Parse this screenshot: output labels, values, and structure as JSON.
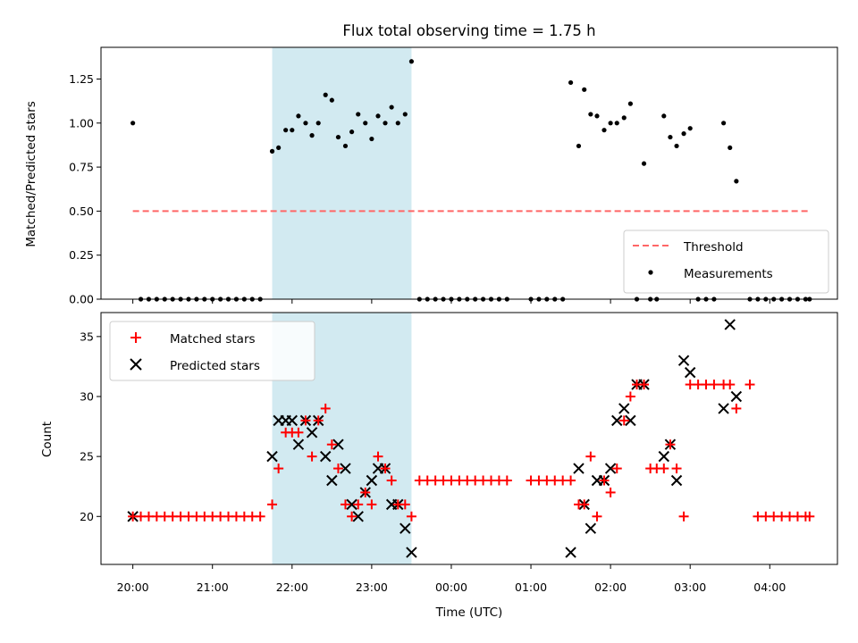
{
  "chart_data": [
    {
      "type": "scatter",
      "title": "Flux total observing time = 1.75 h",
      "xlabel": "",
      "ylabel": "Matched/Predicted stars",
      "ylim": [
        0,
        1.43
      ],
      "yticks": [
        "0.00",
        "0.25",
        "0.50",
        "0.75",
        "1.00",
        "1.25"
      ],
      "shaded_region": {
        "start": 1.75,
        "end": 3.5,
        "color": "#add8e6"
      },
      "threshold": {
        "name": "Threshold",
        "value": 0.5,
        "x_start": 0,
        "x_end": 8.5,
        "color": "#ff6666"
      },
      "legend_position": "lower-right",
      "series": [
        {
          "name": "Measurements",
          "marker": "dot",
          "color": "#000000",
          "x": [
            0.0,
            0.1,
            0.2,
            0.3,
            0.4,
            0.5,
            0.6,
            0.7,
            0.8,
            0.9,
            1.0,
            1.1,
            1.2,
            1.3,
            1.4,
            1.5,
            1.6,
            1.75,
            1.83,
            1.92,
            2.0,
            2.08,
            2.17,
            2.25,
            2.33,
            2.42,
            2.5,
            2.58,
            2.67,
            2.75,
            2.83,
            2.92,
            3.0,
            3.08,
            3.17,
            3.25,
            3.33,
            3.42,
            3.5,
            3.6,
            3.7,
            3.8,
            3.9,
            4.0,
            4.1,
            4.2,
            4.3,
            4.4,
            4.5,
            4.6,
            4.7,
            5.0,
            5.1,
            5.2,
            5.3,
            5.4,
            5.5,
            5.6,
            5.67,
            5.75,
            5.83,
            5.92,
            6.0,
            6.08,
            6.17,
            6.25,
            6.33,
            6.42,
            6.5,
            6.58,
            6.67,
            6.75,
            6.83,
            6.92,
            7.0,
            7.1,
            7.2,
            7.3,
            7.42,
            7.5,
            7.58,
            7.75,
            7.85,
            7.95,
            8.05,
            8.15,
            8.25,
            8.35,
            8.45,
            8.5
          ],
          "y": [
            1.0,
            0,
            0,
            0,
            0,
            0,
            0,
            0,
            0,
            0,
            0,
            0,
            0,
            0,
            0,
            0,
            0,
            0.84,
            0.86,
            0.96,
            0.96,
            1.04,
            1.0,
            0.93,
            1.0,
            1.16,
            1.13,
            0.92,
            0.87,
            0.95,
            1.05,
            1.0,
            0.91,
            1.04,
            1.0,
            1.09,
            1.0,
            1.05,
            1.35,
            0,
            0,
            0,
            0,
            0,
            0,
            0,
            0,
            0,
            0,
            0,
            0,
            0,
            0,
            0,
            0,
            0,
            1.23,
            0.87,
            1.19,
            1.05,
            1.04,
            0.96,
            1.0,
            1.0,
            1.03,
            1.11,
            0,
            0.77,
            0,
            0,
            1.04,
            0.92,
            0.87,
            0.94,
            0.97,
            0,
            0,
            0,
            1.0,
            0.86,
            0.67,
            0,
            0,
            0,
            0,
            0,
            0,
            0,
            0,
            0
          ]
        }
      ]
    },
    {
      "type": "scatter",
      "title": "",
      "xlabel": "Time (UTC)",
      "ylabel": "Count",
      "ylim": [
        16,
        37
      ],
      "yticks": [
        "20",
        "25",
        "30",
        "35"
      ],
      "xlim": [
        -0.4,
        8.85
      ],
      "xticks": [
        "20:00",
        "21:00",
        "22:00",
        "23:00",
        "00:00",
        "01:00",
        "02:00",
        "03:00",
        "04:00"
      ],
      "shaded_region": {
        "start": 1.75,
        "end": 3.5,
        "color": "#add8e6"
      },
      "legend_position": "upper-left",
      "series": [
        {
          "name": "Matched stars",
          "marker": "plus",
          "color": "#ff0000",
          "x": [
            0.0,
            0.1,
            0.2,
            0.3,
            0.4,
            0.5,
            0.6,
            0.7,
            0.8,
            0.9,
            1.0,
            1.1,
            1.2,
            1.3,
            1.4,
            1.5,
            1.6,
            1.75,
            1.83,
            1.92,
            2.0,
            2.08,
            2.17,
            2.25,
            2.33,
            2.42,
            2.5,
            2.58,
            2.67,
            2.75,
            2.83,
            2.92,
            3.0,
            3.08,
            3.17,
            3.25,
            3.33,
            3.42,
            3.5,
            3.6,
            3.7,
            3.8,
            3.9,
            4.0,
            4.1,
            4.2,
            4.3,
            4.4,
            4.5,
            4.6,
            4.7,
            5.0,
            5.1,
            5.2,
            5.3,
            5.4,
            5.5,
            5.6,
            5.67,
            5.75,
            5.83,
            5.92,
            6.0,
            6.08,
            6.17,
            6.25,
            6.33,
            6.42,
            6.5,
            6.58,
            6.67,
            6.75,
            6.83,
            6.92,
            7.0,
            7.1,
            7.2,
            7.3,
            7.42,
            7.5,
            7.58,
            7.75,
            7.85,
            7.95,
            8.05,
            8.15,
            8.25,
            8.35,
            8.45,
            8.5
          ],
          "y": [
            20,
            20,
            20,
            20,
            20,
            20,
            20,
            20,
            20,
            20,
            20,
            20,
            20,
            20,
            20,
            20,
            20,
            21,
            24,
            27,
            27,
            27,
            28,
            25,
            28,
            29,
            26,
            24,
            21,
            20,
            21,
            22,
            21,
            25,
            24,
            23,
            21,
            21,
            20,
            23,
            23,
            23,
            23,
            23,
            23,
            23,
            23,
            23,
            23,
            23,
            23,
            23,
            23,
            23,
            23,
            23,
            23,
            21,
            21,
            25,
            20,
            23,
            22,
            24,
            28,
            30,
            31,
            31,
            24,
            24,
            24,
            26,
            24,
            20,
            31,
            31,
            31,
            31,
            31,
            31,
            29,
            31,
            20,
            20,
            20,
            20,
            20,
            20,
            20,
            20
          ]
        },
        {
          "name": "Predicted stars",
          "marker": "x",
          "color": "#000000",
          "x": [
            0.0,
            1.75,
            1.83,
            1.92,
            2.0,
            2.08,
            2.17,
            2.25,
            2.33,
            2.42,
            2.5,
            2.58,
            2.67,
            2.75,
            2.83,
            2.92,
            3.0,
            3.08,
            3.17,
            3.25,
            3.33,
            3.42,
            3.5,
            5.5,
            5.6,
            5.67,
            5.75,
            5.83,
            5.92,
            6.0,
            6.08,
            6.17,
            6.25,
            6.33,
            6.42,
            6.67,
            6.75,
            6.83,
            6.92,
            7.0,
            7.42,
            7.5,
            7.58
          ],
          "y": [
            20,
            25,
            28,
            28,
            28,
            26,
            28,
            27,
            28,
            25,
            23,
            26,
            24,
            21,
            20,
            22,
            23,
            24,
            24,
            21,
            21,
            19,
            17,
            17,
            24,
            21,
            19,
            23,
            23,
            24,
            28,
            29,
            28,
            31,
            31,
            25,
            26,
            23,
            33,
            32,
            29,
            36,
            30
          ]
        }
      ]
    }
  ]
}
